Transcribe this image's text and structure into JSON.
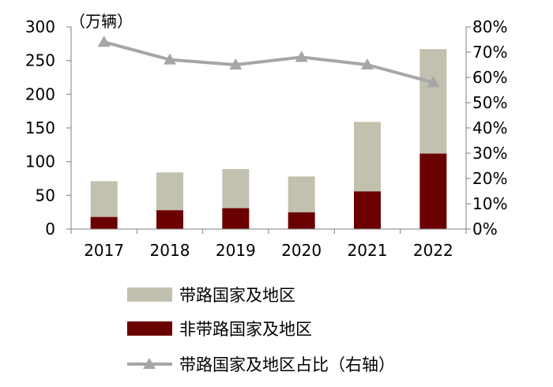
{
  "chart_data": {
    "type": "bar",
    "stacked": true,
    "categories": [
      "2017",
      "2018",
      "2019",
      "2020",
      "2021",
      "2022"
    ],
    "series": [
      {
        "name": "带路国家及地区",
        "type": "bar",
        "axis": "left",
        "color": "#C2C0AF",
        "values": [
          53,
          56,
          58,
          53,
          103,
          155
        ]
      },
      {
        "name": "非带路国家及地区",
        "type": "bar",
        "axis": "left",
        "color": "#6B0000",
        "values": [
          18,
          28,
          31,
          25,
          56,
          112
        ]
      },
      {
        "name": "带路国家及地区占比（右轴）",
        "type": "line",
        "axis": "right",
        "color": "#A6A6A6",
        "values": [
          74,
          67,
          65,
          68,
          65,
          58
        ]
      }
    ],
    "ylabel": "（万辆）",
    "ylim": [
      0,
      300
    ],
    "yticks": [
      "0",
      "50",
      "100",
      "150",
      "200",
      "250",
      "300"
    ],
    "y2lim": [
      0,
      80
    ],
    "y2ticks": [
      "0%",
      "10%",
      "20%",
      "30%",
      "40%",
      "50%",
      "60%",
      "70%",
      "80%"
    ],
    "legend": [
      {
        "label": "带路国家及地区",
        "kind": "bar",
        "color": "#C2C0AF"
      },
      {
        "label": "非带路国家及地区",
        "kind": "bar",
        "color": "#6B0000"
      },
      {
        "label": "带路国家及地区占比（右轴）",
        "kind": "line",
        "color": "#A6A6A6"
      }
    ],
    "grid": false
  }
}
